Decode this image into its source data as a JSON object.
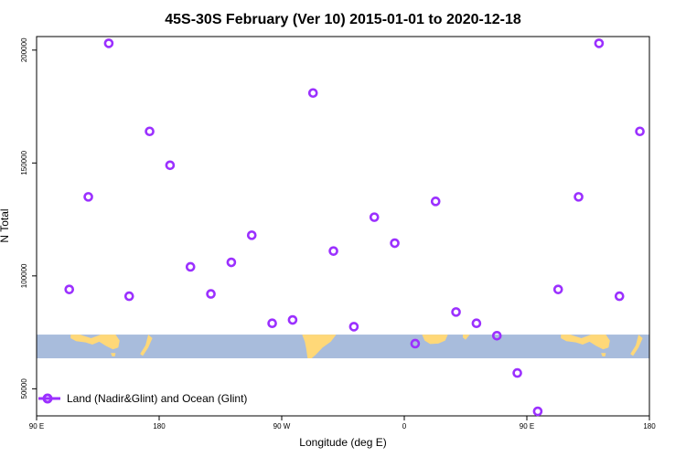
{
  "chart_data": {
    "type": "scatter",
    "title": "45S-30S February (Ver 10)   2015-01-01 to 2020-12-18",
    "xlabel": "Longitude (deg E)",
    "ylabel": "N Total",
    "x_ticks": [
      {
        "value": 90,
        "label": "90 E"
      },
      {
        "value": 180,
        "label": "180"
      },
      {
        "value": 270,
        "label": "90 W"
      },
      {
        "value": 360,
        "label": "0"
      },
      {
        "value": 450,
        "label": "90 E"
      },
      {
        "value": 540,
        "label": "180"
      }
    ],
    "y_ticks": [
      50000,
      100000,
      150000,
      200000
    ],
    "xlim": [
      90,
      540
    ],
    "ylim": [
      38000,
      206000
    ],
    "grid": false,
    "legend_position": "bottom-left",
    "series": [
      {
        "name": "Land (Nadir&Glint) and Ocean (Glint)",
        "color": "#9b30ff",
        "marker": "open-circle",
        "x": [
          114,
          128,
          143,
          158,
          173,
          188,
          203,
          218,
          233,
          248,
          263,
          278,
          293,
          308,
          323,
          338,
          353,
          368,
          383,
          398,
          413,
          428,
          443,
          458,
          473,
          488,
          503,
          518,
          533
        ],
        "y": [
          94000,
          135000,
          203000,
          91000,
          164000,
          149000,
          104000,
          92000,
          106000,
          118000,
          79000,
          80500,
          181000,
          111000,
          77500,
          126000,
          114500,
          70000,
          133000,
          84000,
          79000,
          73500,
          57000,
          40000,
          94000,
          135000,
          203000,
          91000,
          164000
        ]
      }
    ],
    "map_strip": {
      "y_range": [
        63500,
        74000
      ],
      "ocean_color": "#a8bcdc",
      "land_color": "#ffd878"
    }
  }
}
